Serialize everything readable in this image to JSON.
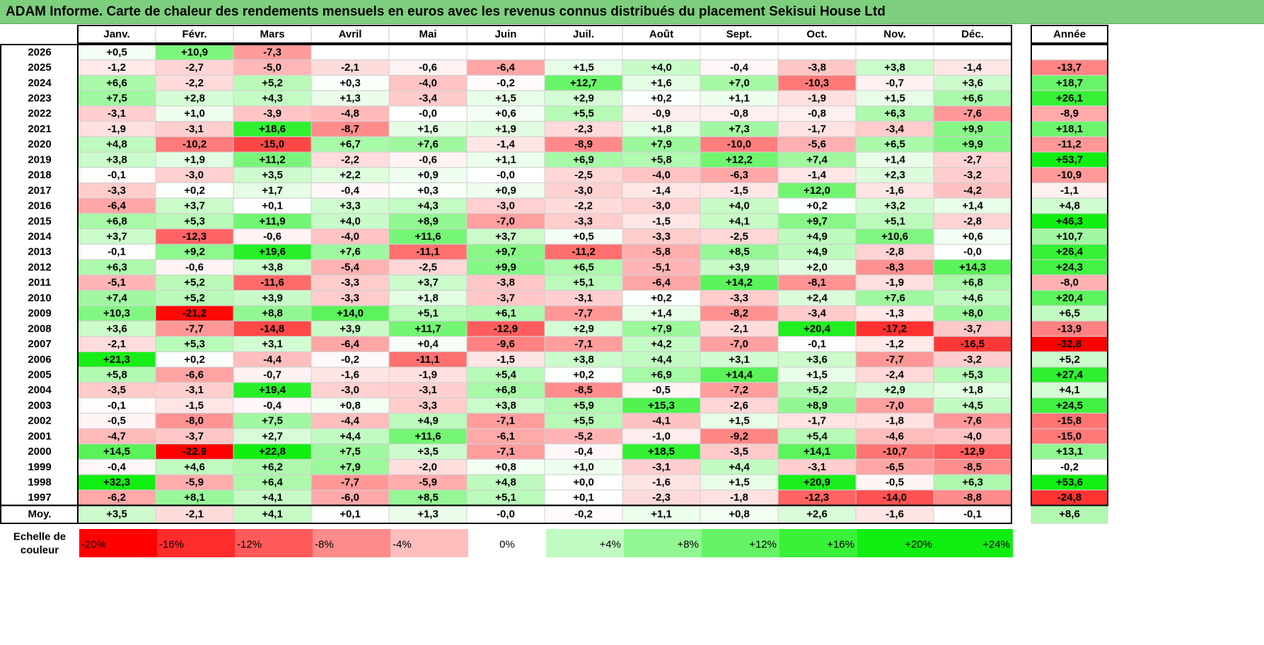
{
  "title": "ADAM Informe. Carte de chaleur des rendements mensuels en euros avec les revenus connus distribués du placement Sekisui House Ltd",
  "chart_data": {
    "type": "heatmap",
    "columns": [
      "Janv.",
      "Févr.",
      "Mars",
      "Avril",
      "Mai",
      "Juin",
      "Juil.",
      "Août",
      "Sept.",
      "Oct.",
      "Nov.",
      "Déc."
    ],
    "year_column_label": "Année",
    "rows": [
      {
        "year": "2026",
        "values": [
          "+0,5",
          "+10,9",
          "-7,3",
          "",
          "",
          "",
          "",
          "",
          "",
          "",
          "",
          ""
        ],
        "annual": ""
      },
      {
        "year": "2025",
        "values": [
          "-1,2",
          "-2,7",
          "-5,0",
          "-2,1",
          "-0,6",
          "-6,4",
          "+1,5",
          "+4,0",
          "-0,4",
          "-3,8",
          "+3,8",
          "-1,4"
        ],
        "annual": "-13,7"
      },
      {
        "year": "2024",
        "values": [
          "+6,6",
          "-2,2",
          "+5,2",
          "+0,3",
          "-4,0",
          "-0,2",
          "+12,7",
          "+1,6",
          "+7,0",
          "-10,3",
          "-0,7",
          "+3,6"
        ],
        "annual": "+18,7"
      },
      {
        "year": "2023",
        "values": [
          "+7,5",
          "+2,8",
          "+4,3",
          "+1,3",
          "-3,4",
          "+1,5",
          "+2,9",
          "+0,2",
          "+1,1",
          "-1,9",
          "+1,5",
          "+6,6"
        ],
        "annual": "+26,1"
      },
      {
        "year": "2022",
        "values": [
          "-3,1",
          "+1,0",
          "-3,9",
          "-4,8",
          "-0,0",
          "+0,6",
          "+5,5",
          "-0,9",
          "-0,8",
          "-0,8",
          "+6,3",
          "-7,6"
        ],
        "annual": "-8,9"
      },
      {
        "year": "2021",
        "values": [
          "-1,9",
          "-3,1",
          "+18,6",
          "-8,7",
          "+1,6",
          "+1,9",
          "-2,3",
          "+1,8",
          "+7,3",
          "-1,7",
          "-3,4",
          "+9,9"
        ],
        "annual": "+18,1"
      },
      {
        "year": "2020",
        "values": [
          "+4,8",
          "-10,2",
          "-15,0",
          "+6,7",
          "+7,6",
          "-1,4",
          "-8,9",
          "+7,9",
          "-10,0",
          "-5,6",
          "+6,5",
          "+9,9"
        ],
        "annual": "-11,2"
      },
      {
        "year": "2019",
        "values": [
          "+3,8",
          "+1,9",
          "+11,2",
          "-2,2",
          "-0,6",
          "+1,1",
          "+6,9",
          "+5,8",
          "+12,2",
          "+7,4",
          "+1,4",
          "-2,7"
        ],
        "annual": "+53,7"
      },
      {
        "year": "2018",
        "values": [
          "-0,1",
          "-3,0",
          "+3,5",
          "+2,2",
          "+0,9",
          "-0,0",
          "-2,5",
          "-4,0",
          "-6,3",
          "-1,4",
          "+2,3",
          "-3,2"
        ],
        "annual": "-10,9"
      },
      {
        "year": "2017",
        "values": [
          "-3,3",
          "+0,2",
          "+1,7",
          "-0,4",
          "+0,3",
          "+0,9",
          "-3,0",
          "-1,4",
          "-1,5",
          "+12,0",
          "-1,6",
          "-4,2"
        ],
        "annual": "-1,1"
      },
      {
        "year": "2016",
        "values": [
          "-6,4",
          "+3,7",
          "+0,1",
          "+3,3",
          "+4,3",
          "-3,0",
          "-2,2",
          "-3,0",
          "+4,0",
          "+0,2",
          "+3,2",
          "+1,4"
        ],
        "annual": "+4,8"
      },
      {
        "year": "2015",
        "values": [
          "+6,8",
          "+5,3",
          "+11,9",
          "+4,0",
          "+8,9",
          "-7,0",
          "-3,3",
          "-1,5",
          "+4,1",
          "+9,7",
          "+5,1",
          "-2,8"
        ],
        "annual": "+46,3"
      },
      {
        "year": "2014",
        "values": [
          "+3,7",
          "-12,3",
          "-0,6",
          "-4,0",
          "+11,6",
          "+3,7",
          "+0,5",
          "-3,3",
          "-2,5",
          "+4,9",
          "+10,6",
          "+0,6"
        ],
        "annual": "+10,7"
      },
      {
        "year": "2013",
        "values": [
          "-0,1",
          "+9,2",
          "+19,6",
          "+7,6",
          "-11,1",
          "+9,7",
          "-11,2",
          "-5,8",
          "+8,5",
          "+4,9",
          "-2,8",
          "-0,0"
        ],
        "annual": "+26,4"
      },
      {
        "year": "2012",
        "values": [
          "+6,3",
          "-0,6",
          "+3,8",
          "-5,4",
          "-2,5",
          "+9,9",
          "+6,5",
          "-5,1",
          "+3,9",
          "+2,0",
          "-8,3",
          "+14,3"
        ],
        "annual": "+24,3"
      },
      {
        "year": "2011",
        "values": [
          "-5,1",
          "+5,2",
          "-11,6",
          "-3,3",
          "+3,7",
          "-3,8",
          "+5,1",
          "-6,4",
          "+14,2",
          "-8,1",
          "-1,9",
          "+6,8"
        ],
        "annual": "-8,0"
      },
      {
        "year": "2010",
        "values": [
          "+7,4",
          "+5,2",
          "+3,9",
          "-3,3",
          "+1,8",
          "-3,7",
          "-3,1",
          "+0,2",
          "-3,3",
          "+2,4",
          "+7,6",
          "+4,6"
        ],
        "annual": "+20,4"
      },
      {
        "year": "2009",
        "values": [
          "+10,3",
          "-21,2",
          "+8,8",
          "+14,0",
          "+5,1",
          "+6,1",
          "-7,7",
          "+1,4",
          "-8,2",
          "-3,4",
          "-1,3",
          "+8,0"
        ],
        "annual": "+6,5"
      },
      {
        "year": "2008",
        "values": [
          "+3,6",
          "-7,7",
          "-14,8",
          "+3,9",
          "+11,7",
          "-12,9",
          "+2,9",
          "+7,9",
          "-2,1",
          "+20,4",
          "-17,2",
          "-3,7"
        ],
        "annual": "-13,9"
      },
      {
        "year": "2007",
        "values": [
          "-2,1",
          "+5,3",
          "+3,1",
          "-6,4",
          "+0,4",
          "-9,6",
          "-7,1",
          "+4,2",
          "-7,0",
          "-0,1",
          "-1,2",
          "-16,5"
        ],
        "annual": "-32,8"
      },
      {
        "year": "2006",
        "values": [
          "+21,3",
          "+0,2",
          "-4,4",
          "-0,2",
          "-11,1",
          "-1,5",
          "+3,8",
          "+4,4",
          "+3,1",
          "+3,6",
          "-7,7",
          "-3,2"
        ],
        "annual": "+5,2"
      },
      {
        "year": "2005",
        "values": [
          "+5,8",
          "-6,6",
          "-0,7",
          "-1,6",
          "-1,9",
          "+5,4",
          "+0,2",
          "+6,9",
          "+14,4",
          "+1,5",
          "-2,4",
          "+5,3"
        ],
        "annual": "+27,4"
      },
      {
        "year": "2004",
        "values": [
          "-3,5",
          "-3,1",
          "+19,4",
          "-3,0",
          "-3,1",
          "+6,8",
          "-8,5",
          "-0,5",
          "-7,2",
          "+5,2",
          "+2,9",
          "+1,8"
        ],
        "annual": "+4,1"
      },
      {
        "year": "2003",
        "values": [
          "-0,1",
          "-1,5",
          "-0,4",
          "+0,8",
          "-3,3",
          "+3,8",
          "+5,9",
          "+15,3",
          "-2,6",
          "+8,9",
          "-7,0",
          "+4,5"
        ],
        "annual": "+24,5"
      },
      {
        "year": "2002",
        "values": [
          "-0,5",
          "-8,0",
          "+7,5",
          "-4,4",
          "+4,9",
          "-7,1",
          "+5,5",
          "-4,1",
          "+1,5",
          "-1,7",
          "-1,8",
          "-7,6"
        ],
        "annual": "-15,8"
      },
      {
        "year": "2001",
        "values": [
          "-4,7",
          "-3,7",
          "+2,7",
          "+4,4",
          "+11,6",
          "-6,1",
          "-5,2",
          "-1,0",
          "-9,2",
          "+5,4",
          "-4,6",
          "-4,0"
        ],
        "annual": "-15,0"
      },
      {
        "year": "2000",
        "values": [
          "+14,5",
          "-22,9",
          "+22,8",
          "+7,5",
          "+3,5",
          "-7,1",
          "-0,4",
          "+18,5",
          "-3,5",
          "+14,1",
          "-10,7",
          "-12,9"
        ],
        "annual": "+13,1"
      },
      {
        "year": "1999",
        "values": [
          "-0,4",
          "+4,6",
          "+6,2",
          "+7,9",
          "-2,0",
          "+0,8",
          "+1,0",
          "-3,1",
          "+4,4",
          "-3,1",
          "-6,5",
          "-8,5"
        ],
        "annual": "-0,2"
      },
      {
        "year": "1998",
        "values": [
          "+32,3",
          "-5,9",
          "+6,4",
          "-7,7",
          "-5,9",
          "+4,8",
          "+0,0",
          "-1,6",
          "+1,5",
          "+20,9",
          "-0,5",
          "+6,3"
        ],
        "annual": "+53,6"
      },
      {
        "year": "1997",
        "values": [
          "-6,2",
          "+8,1",
          "+4,1",
          "-6,0",
          "+8,5",
          "+5,1",
          "+0,1",
          "-2,3",
          "-1,8",
          "-12,3",
          "-14,0",
          "-8,8"
        ],
        "annual": "-24,8"
      }
    ],
    "average": {
      "label": "Moy.",
      "values": [
        "+3,5",
        "-2,1",
        "+4,1",
        "+0,1",
        "+1,3",
        "-0,0",
        "-0,2",
        "+1,1",
        "+0,8",
        "+2,6",
        "-1,6",
        "-0,1"
      ],
      "annual": "+8,6"
    },
    "scale": {
      "label_line1": "Echelle de",
      "label_line2": "couleur",
      "stops": [
        {
          "value": -20,
          "label": "-20%"
        },
        {
          "value": -16,
          "label": "-16%"
        },
        {
          "value": -12,
          "label": "-12%"
        },
        {
          "value": -8,
          "label": "-8%"
        },
        {
          "value": -4,
          "label": "-4%"
        },
        {
          "value": 0,
          "label": "0%"
        },
        {
          "value": 4,
          "label": "+4%"
        },
        {
          "value": 8,
          "label": "+8%"
        },
        {
          "value": 12,
          "label": "+12%"
        },
        {
          "value": 16,
          "label": "+16%"
        },
        {
          "value": 20,
          "label": "+20%"
        },
        {
          "value": 24,
          "label": "+24%"
        }
      ]
    },
    "colors": {
      "title_bg": "#7dcf7d",
      "max_negative": "#ff0000",
      "max_positive": "#11ee11",
      "neutral": "#ffffff"
    }
  }
}
